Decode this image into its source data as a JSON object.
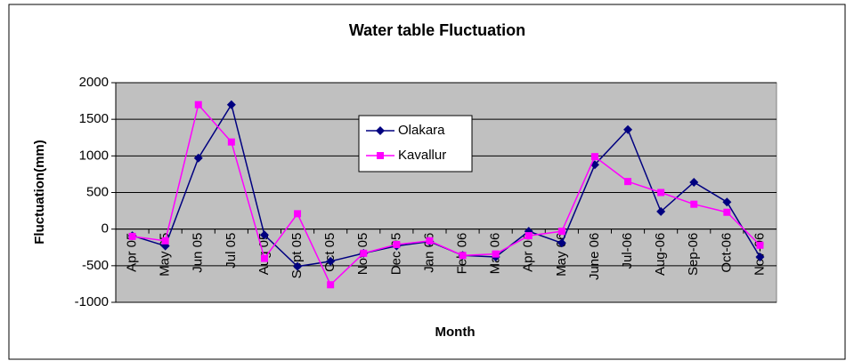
{
  "chart_data": {
    "type": "line",
    "title": "Water table Fluctuation",
    "x_label": "Month",
    "y_label": "Fluctuation(mm)",
    "categories": [
      "Apr 05",
      "May 05",
      "Jun 05",
      "Jul 05",
      "Aug 05",
      "Sept 05",
      "Oct 05",
      "Nov 05",
      "Dec 05",
      "Jan 06",
      "Feb 06",
      "Mar 06",
      "Apr 06",
      "May 06",
      "June 06",
      "Jul-06",
      "Aug-06",
      "Sep-06",
      "Oct-06",
      "Nov-06"
    ],
    "series": [
      {
        "name": "Olakara",
        "color": "#000080",
        "marker": "diamond",
        "values": [
          -90,
          -230,
          970,
          1700,
          -80,
          -510,
          -440,
          -330,
          -230,
          -170,
          -360,
          -380,
          -30,
          -190,
          880,
          1360,
          240,
          640,
          370,
          -380
        ]
      },
      {
        "name": "Kavallur",
        "color": "#ff00ff",
        "marker": "square",
        "values": [
          -100,
          -160,
          1700,
          1190,
          -400,
          210,
          -760,
          -330,
          -210,
          -160,
          -360,
          -340,
          -90,
          -30,
          990,
          650,
          500,
          340,
          230,
          -220
        ]
      }
    ],
    "ylim": [
      -1000,
      2000
    ],
    "yticks": [
      -1000,
      -500,
      0,
      500,
      1000,
      1500,
      2000
    ],
    "grid": true
  }
}
